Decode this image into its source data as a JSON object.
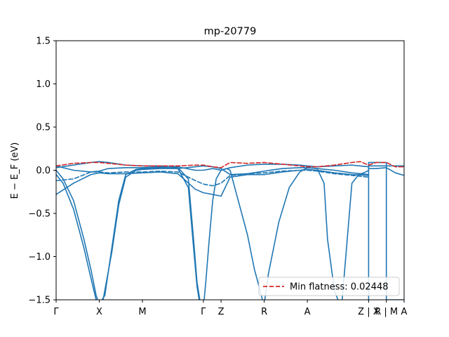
{
  "chart_data": {
    "type": "line",
    "title": "mp-20779",
    "xlabel": "",
    "ylabel": "E − E_F (eV)",
    "ylim": [
      -1.5,
      1.5
    ],
    "yticks": [
      -1.5,
      -1.0,
      -0.5,
      0.0,
      0.5,
      1.0,
      1.5
    ],
    "ytick_labels": [
      "−1.5",
      "−1.0",
      "−0.5",
      "0.0",
      "0.5",
      "1.0",
      "1.5"
    ],
    "xlim": [
      0,
      1
    ],
    "kpath": [
      {
        "label": "Γ",
        "x": 0.0
      },
      {
        "label": "X",
        "x": 0.124
      },
      {
        "label": "M",
        "x": 0.248
      },
      {
        "label": "Γ",
        "x": 0.423
      },
      {
        "label": "Z",
        "x": 0.474
      },
      {
        "label": "R",
        "x": 0.598
      },
      {
        "label": "A",
        "x": 0.722
      },
      {
        "label": "Z | X",
        "x": 0.898
      },
      {
        "label": "R | M",
        "x": 0.949
      },
      {
        "label": "A",
        "x": 1.0
      }
    ],
    "vertical_lines": [
      0.898,
      0.949
    ],
    "legend": {
      "label": "Min flatness: 0.02448",
      "position": "lower right",
      "color": "#d62728",
      "style": "dashed"
    },
    "colors": {
      "band": "#1f77b4",
      "flat": "#d62728"
    },
    "series": [
      {
        "style": "solid",
        "x": [
          0.0,
          0.05,
          0.1,
          0.124,
          0.15,
          0.2,
          0.248,
          0.3,
          0.35,
          0.4,
          0.423,
          0.45,
          0.474,
          0.5,
          0.55,
          0.598,
          0.65,
          0.7,
          0.722,
          0.75,
          0.8,
          0.85,
          0.898
        ],
        "y": [
          -0.28,
          -0.15,
          -0.05,
          -0.03,
          -0.04,
          -0.04,
          -0.03,
          -0.02,
          -0.04,
          -0.22,
          -0.26,
          -0.28,
          -0.3,
          -0.08,
          -0.05,
          -0.05,
          -0.02,
          0.0,
          0.01,
          0.0,
          -0.03,
          -0.05,
          -0.06
        ]
      },
      {
        "style": "solid",
        "x": [
          0.0,
          0.05,
          0.1,
          0.124,
          0.15,
          0.2,
          0.248,
          0.3,
          0.35,
          0.4,
          0.423,
          0.45,
          0.474,
          0.5,
          0.55,
          0.598,
          0.65,
          0.7,
          0.722,
          0.75,
          0.8,
          0.85,
          0.898
        ],
        "y": [
          0.05,
          0.0,
          -0.02,
          -0.01,
          0.02,
          0.03,
          0.03,
          0.04,
          0.02,
          0.04,
          0.05,
          0.04,
          0.02,
          -0.05,
          -0.04,
          -0.01,
          0.02,
          0.03,
          0.03,
          0.02,
          0.0,
          -0.03,
          -0.05
        ]
      },
      {
        "style": "solid",
        "x": [
          0.0,
          0.05,
          0.1,
          0.124,
          0.15,
          0.2,
          0.248,
          0.3,
          0.35,
          0.4,
          0.423,
          0.45,
          0.474,
          0.5,
          0.55,
          0.598,
          0.65,
          0.7,
          0.722,
          0.75,
          0.8,
          0.85,
          0.898
        ],
        "y": [
          0.03,
          0.06,
          0.09,
          0.1,
          0.09,
          0.06,
          0.05,
          0.05,
          0.04,
          0.0,
          0.0,
          0.02,
          0.0,
          0.03,
          0.06,
          0.07,
          0.07,
          0.06,
          0.05,
          0.04,
          0.05,
          0.06,
          0.04
        ]
      },
      {
        "style": "solid",
        "x": [
          0.0,
          0.02,
          0.05,
          0.08,
          0.1,
          0.115,
          0.124,
          0.14,
          0.16,
          0.18,
          0.2,
          0.23,
          0.248,
          0.3,
          0.35,
          0.38,
          0.395,
          0.405,
          0.415,
          0.423
        ],
        "y": [
          0.0,
          -0.1,
          -0.35,
          -0.8,
          -1.15,
          -1.45,
          -1.55,
          -1.45,
          -0.9,
          -0.35,
          -0.05,
          0.01,
          0.02,
          0.03,
          0.03,
          -0.1,
          -0.8,
          -1.3,
          -1.55,
          -1.6
        ]
      },
      {
        "style": "solid",
        "x": [
          0.0,
          0.02,
          0.05,
          0.08,
          0.1,
          0.115,
          0.124,
          0.135,
          0.16,
          0.18,
          0.2,
          0.23,
          0.248,
          0.3,
          0.35,
          0.38,
          0.395,
          0.405,
          0.415,
          0.423
        ],
        "y": [
          -0.05,
          -0.15,
          -0.45,
          -0.9,
          -1.25,
          -1.5,
          -1.6,
          -1.5,
          -0.95,
          -0.4,
          -0.08,
          0.0,
          0.01,
          0.02,
          0.02,
          -0.2,
          -0.9,
          -1.35,
          -1.6,
          -1.65
        ]
      },
      {
        "style": "solid",
        "x": [
          0.423,
          0.43,
          0.44,
          0.45,
          0.46,
          0.474,
          0.49,
          0.5,
          0.52,
          0.55,
          0.57,
          0.59,
          0.598
        ],
        "y": [
          -1.6,
          -1.3,
          -0.8,
          -0.35,
          -0.1,
          0.0,
          0.02,
          0.0,
          -0.3,
          -0.75,
          -1.15,
          -1.45,
          -1.6
        ]
      },
      {
        "style": "solid",
        "x": [
          0.598,
          0.61,
          0.64,
          0.67,
          0.7,
          0.722,
          0.75,
          0.77,
          0.78,
          0.8,
          0.82,
          0.85,
          0.87,
          0.89,
          0.898
        ],
        "y": [
          -1.55,
          -1.2,
          -0.6,
          -0.2,
          -0.02,
          0.03,
          0.02,
          -0.15,
          -0.8,
          -1.4,
          -1.6,
          -0.15,
          -0.05,
          -0.02,
          0.0
        ]
      },
      {
        "style": "solid",
        "x": [
          0.898,
          0.898,
          0.949,
          0.949,
          1.0
        ],
        "y": [
          -1.5,
          0.09,
          0.09,
          -1.5,
          -1.5
        ]
      },
      {
        "style": "solid",
        "x": [
          0.898,
          0.949,
          1.0
        ],
        "y": [
          0.05,
          0.05,
          0.05
        ]
      },
      {
        "style": "solid",
        "x": [
          0.898,
          0.92,
          0.949,
          0.975,
          1.0
        ],
        "y": [
          0.02,
          0.02,
          0.03,
          -0.03,
          -0.06
        ]
      },
      {
        "style": "dashed",
        "x": [
          0.0,
          0.05,
          0.1,
          0.124,
          0.15,
          0.2,
          0.248,
          0.3,
          0.35,
          0.4,
          0.423,
          0.45,
          0.474,
          0.5,
          0.55,
          0.598,
          0.65,
          0.7,
          0.722,
          0.75,
          0.8,
          0.85,
          0.898
        ],
        "y": [
          -0.12,
          -0.1,
          -0.02,
          -0.02,
          -0.03,
          -0.02,
          -0.02,
          -0.01,
          -0.02,
          -0.12,
          -0.16,
          -0.18,
          -0.15,
          -0.06,
          -0.04,
          -0.03,
          -0.01,
          0.0,
          0.0,
          -0.01,
          -0.04,
          -0.06,
          -0.08
        ]
      },
      {
        "style": "flat",
        "x": [
          0.0,
          0.05,
          0.1,
          0.124,
          0.15,
          0.2,
          0.248,
          0.3,
          0.35,
          0.4,
          0.423,
          0.45,
          0.474,
          0.5,
          0.55,
          0.598,
          0.65,
          0.7,
          0.722,
          0.75,
          0.8,
          0.85,
          0.874,
          0.898,
          0.92,
          0.949,
          0.975,
          1.0
        ],
        "y": [
          0.05,
          0.08,
          0.09,
          0.09,
          0.08,
          0.06,
          0.05,
          0.05,
          0.05,
          0.06,
          0.06,
          0.04,
          0.03,
          0.09,
          0.08,
          0.09,
          0.07,
          0.05,
          0.04,
          0.04,
          0.06,
          0.09,
          0.1,
          0.06,
          0.09,
          0.09,
          0.04,
          0.04
        ]
      }
    ]
  }
}
